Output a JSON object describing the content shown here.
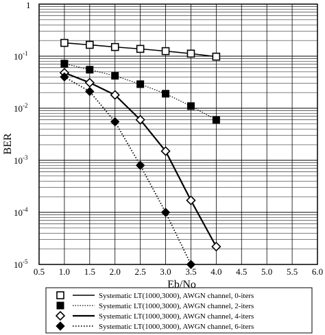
{
  "chart_data": {
    "type": "line",
    "xlabel": "Eb/No",
    "ylabel": "BER",
    "xlim": [
      0.5,
      6.0
    ],
    "ylim": [
      1e-05,
      1
    ],
    "yscale": "log",
    "grid": true,
    "legend_position": "bottom",
    "x_ticks": [
      "0.5",
      "1.0",
      "1.5",
      "2.0",
      "2.5",
      "3.0",
      "3.5",
      "4.0",
      "4.5",
      "5.0",
      "5.5",
      "6.0"
    ],
    "y_ticks": [
      {
        "value": 1,
        "base": "1",
        "exp": ""
      },
      {
        "value": 0.1,
        "base": "10",
        "exp": "-1"
      },
      {
        "value": 0.01,
        "base": "10",
        "exp": "-2"
      },
      {
        "value": 0.001,
        "base": "10",
        "exp": "-3"
      },
      {
        "value": 0.0001,
        "base": "10",
        "exp": "-4"
      },
      {
        "value": 1e-05,
        "base": "10",
        "exp": "-5"
      }
    ],
    "series": [
      {
        "name": "Systematic LT(1000,3000), AWGN channel, 0-iters",
        "marker": "open-square",
        "line": "solid",
        "x": [
          1.0,
          1.5,
          2.0,
          2.5,
          3.0,
          3.5,
          4.0
        ],
        "y": [
          0.18,
          0.165,
          0.15,
          0.138,
          0.125,
          0.112,
          0.098
        ]
      },
      {
        "name": "Systematic LT(1000,3000), AWGN channel, 2-iters",
        "marker": "filled-square",
        "line": "dotted",
        "x": [
          1.0,
          1.5,
          2.0,
          2.5,
          3.0,
          3.5,
          4.0
        ],
        "y": [
          0.072,
          0.055,
          0.042,
          0.029,
          0.019,
          0.011,
          0.006
        ]
      },
      {
        "name": "Systematic LT(1000,3000), AWGN channel, 4-iters",
        "marker": "open-diamond",
        "line": "solid-thick",
        "x": [
          1.0,
          1.5,
          2.0,
          2.5,
          3.0,
          3.5,
          4.0
        ],
        "y": [
          0.048,
          0.031,
          0.018,
          0.006,
          0.0015,
          0.00017,
          2.2e-05
        ]
      },
      {
        "name": "Systematic LT(1000,3000), AWGN channel, 6-iters",
        "marker": "filled-diamond",
        "line": "dotted-thick",
        "x": [
          1.0,
          1.5,
          2.0,
          2.5,
          3.0,
          3.5
        ],
        "y": [
          0.04,
          0.021,
          0.0055,
          0.0008,
          0.0001,
          1e-05
        ]
      }
    ]
  }
}
